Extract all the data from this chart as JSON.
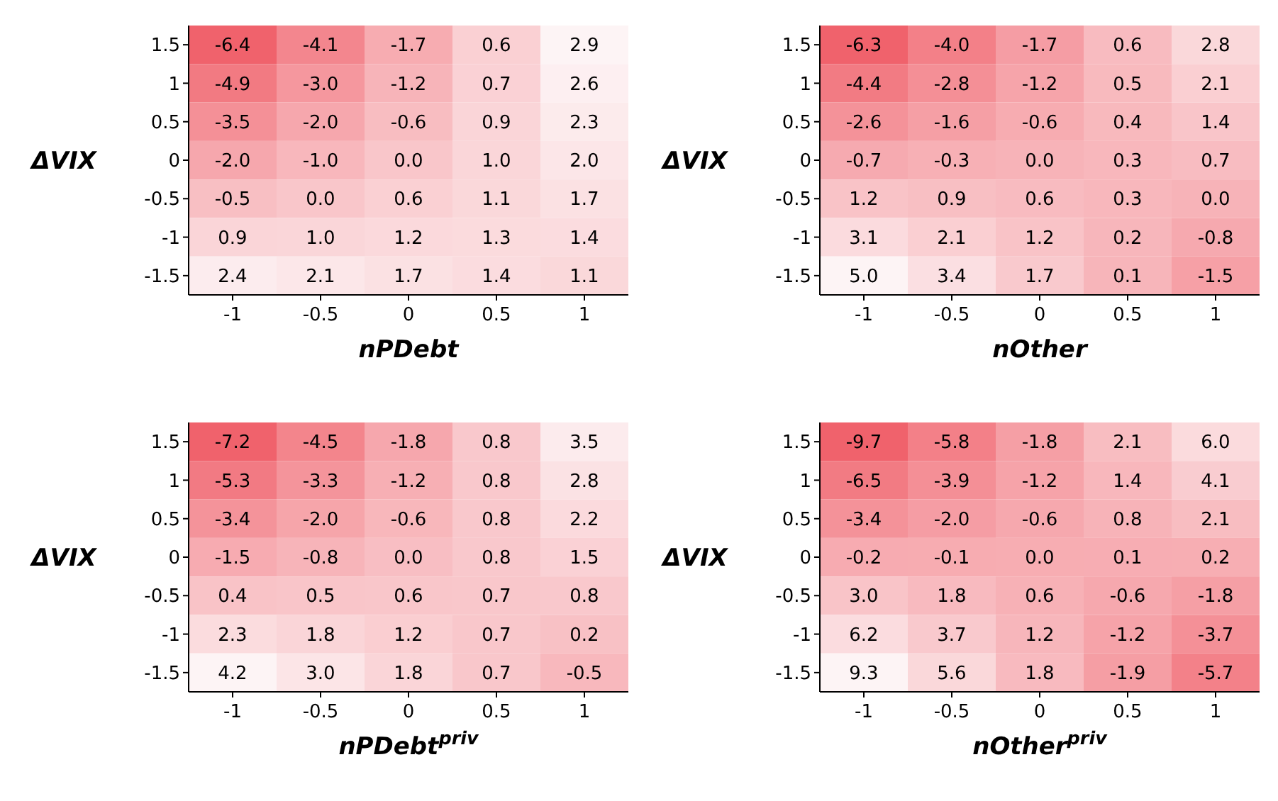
{
  "chart_data": [
    {
      "type": "heatmap",
      "data_labels": true,
      "xlabel": "nPDebt",
      "ylabel": "ΔVIX",
      "categories": [
        "-1",
        "-0.5",
        "0",
        "0.5",
        "1"
      ],
      "y_categories": [
        "1.5",
        "1",
        "0.5",
        "0",
        "-0.5",
        "-1",
        "-1.5"
      ],
      "cells": [
        [
          -6.4,
          -4.1,
          -1.7,
          0.6,
          2.9
        ],
        [
          -4.9,
          -3.0,
          -1.2,
          0.7,
          2.6
        ],
        [
          -3.5,
          -2.0,
          -0.6,
          0.9,
          2.3
        ],
        [
          -2.0,
          -1.0,
          0.0,
          1.0,
          2.0
        ],
        [
          -0.5,
          0.0,
          0.6,
          1.1,
          1.7
        ],
        [
          0.9,
          1.0,
          1.2,
          1.3,
          1.4
        ],
        [
          2.4,
          2.1,
          1.7,
          1.4,
          1.1
        ]
      ],
      "cell_labels": [
        [
          "-6.4",
          "-4.1",
          "-1.7",
          "0.6",
          "2.9"
        ],
        [
          "-4.9",
          "-3.0",
          "-1.2",
          "0.7",
          "2.6"
        ],
        [
          "-3.5",
          "-2.0",
          "-0.6",
          "0.9",
          "2.3"
        ],
        [
          "-2.0",
          "-1.0",
          "0.0",
          "1.0",
          "2.0"
        ],
        [
          "-0.5",
          "0.0",
          "0.6",
          "1.1",
          "1.7"
        ],
        [
          "0.9",
          "1.0",
          "1.2",
          "1.3",
          "1.4"
        ],
        [
          "2.4",
          "2.1",
          "1.7",
          "1.4",
          "1.1"
        ]
      ]
    },
    {
      "type": "heatmap",
      "data_labels": true,
      "xlabel": "nOther",
      "ylabel": "ΔVIX",
      "categories": [
        "-1",
        "-0.5",
        "0",
        "0.5",
        "1"
      ],
      "y_categories": [
        "1.5",
        "1",
        "0.5",
        "0",
        "-0.5",
        "-1",
        "-1.5"
      ],
      "cells": [
        [
          -6.3,
          -4.0,
          -1.7,
          0.6,
          2.8
        ],
        [
          -4.4,
          -2.8,
          -1.2,
          0.5,
          2.1
        ],
        [
          -2.6,
          -1.6,
          -0.6,
          0.4,
          1.4
        ],
        [
          -0.7,
          -0.3,
          0.0,
          0.3,
          0.7
        ],
        [
          1.2,
          0.9,
          0.6,
          0.3,
          0.0
        ],
        [
          3.1,
          2.1,
          1.2,
          0.2,
          -0.8
        ],
        [
          5.0,
          3.4,
          1.7,
          0.1,
          -1.5
        ]
      ],
      "cell_labels": [
        [
          "-6.3",
          "-4.0",
          "-1.7",
          "0.6",
          "2.8"
        ],
        [
          "-4.4",
          "-2.8",
          "-1.2",
          "0.5",
          "2.1"
        ],
        [
          "-2.6",
          "-1.6",
          "-0.6",
          "0.4",
          "1.4"
        ],
        [
          "-0.7",
          "-0.3",
          "0.0",
          "0.3",
          "0.7"
        ],
        [
          "1.2",
          "0.9",
          "0.6",
          "0.3",
          "0.0"
        ],
        [
          "3.1",
          "2.1",
          "1.2",
          "0.2",
          "-0.8"
        ],
        [
          "5.0",
          "3.4",
          "1.7",
          "0.1",
          "-1.5"
        ]
      ]
    },
    {
      "type": "heatmap",
      "data_labels": true,
      "xlabel": "nPDebt$^{priv}$",
      "ylabel": "ΔVIX",
      "categories": [
        "-1",
        "-0.5",
        "0",
        "0.5",
        "1"
      ],
      "y_categories": [
        "1.5",
        "1",
        "0.5",
        "0",
        "-0.5",
        "-1",
        "-1.5"
      ],
      "cells": [
        [
          -7.2,
          -4.5,
          -1.8,
          0.8,
          3.5
        ],
        [
          -5.3,
          -3.3,
          -1.2,
          0.8,
          2.8
        ],
        [
          -3.4,
          -2.0,
          -0.6,
          0.8,
          2.2
        ],
        [
          -1.5,
          -0.8,
          0.0,
          0.8,
          1.5
        ],
        [
          0.4,
          0.5,
          0.6,
          0.7,
          0.8
        ],
        [
          2.3,
          1.8,
          1.2,
          0.7,
          0.2
        ],
        [
          4.2,
          3.0,
          1.8,
          0.7,
          -0.5
        ]
      ],
      "cell_labels": [
        [
          "-7.2",
          "-4.5",
          "-1.8",
          "0.8",
          "3.5"
        ],
        [
          "-5.3",
          "-3.3",
          "-1.2",
          "0.8",
          "2.8"
        ],
        [
          "-3.4",
          "-2.0",
          "-0.6",
          "0.8",
          "2.2"
        ],
        [
          "-1.5",
          "-0.8",
          "0.0",
          "0.8",
          "1.5"
        ],
        [
          "0.4",
          "0.5",
          "0.6",
          "0.7",
          "0.8"
        ],
        [
          "2.3",
          "1.8",
          "1.2",
          "0.7",
          "0.2"
        ],
        [
          "4.2",
          "3.0",
          "1.8",
          "0.7",
          "-0.5"
        ]
      ]
    },
    {
      "type": "heatmap",
      "data_labels": true,
      "xlabel": "nOther$^{priv}$",
      "ylabel": "ΔVIX",
      "categories": [
        "-1",
        "-0.5",
        "0",
        "0.5",
        "1"
      ],
      "y_categories": [
        "1.5",
        "1",
        "0.5",
        "0",
        "-0.5",
        "-1",
        "-1.5"
      ],
      "cells": [
        [
          -9.7,
          -5.8,
          -1.8,
          2.1,
          6.0
        ],
        [
          -6.5,
          -3.9,
          -1.2,
          1.4,
          4.1
        ],
        [
          -3.4,
          -2.0,
          -0.6,
          0.8,
          2.1
        ],
        [
          -0.2,
          -0.1,
          0.0,
          0.1,
          0.2
        ],
        [
          3.0,
          1.8,
          0.6,
          -0.6,
          -1.8
        ],
        [
          6.2,
          3.7,
          1.2,
          -1.2,
          -3.7
        ],
        [
          9.3,
          5.6,
          1.8,
          -1.9,
          -5.7
        ]
      ],
      "cell_labels": [
        [
          "-9.7",
          "-5.8",
          "-1.8",
          "2.1",
          "6.0"
        ],
        [
          "-6.5",
          "-3.9",
          "-1.2",
          "1.4",
          "4.1"
        ],
        [
          "-3.4",
          "-2.0",
          "-0.6",
          "0.8",
          "2.1"
        ],
        [
          "-0.2",
          "-0.1",
          "0.0",
          "0.1",
          "0.2"
        ],
        [
          "3.0",
          "1.8",
          "0.6",
          "-0.6",
          "-1.8"
        ],
        [
          "6.2",
          "3.7",
          "1.2",
          "-1.2",
          "-3.7"
        ],
        [
          "9.3",
          "5.6",
          "1.8",
          "-1.9",
          "-5.7"
        ]
      ]
    }
  ]
}
